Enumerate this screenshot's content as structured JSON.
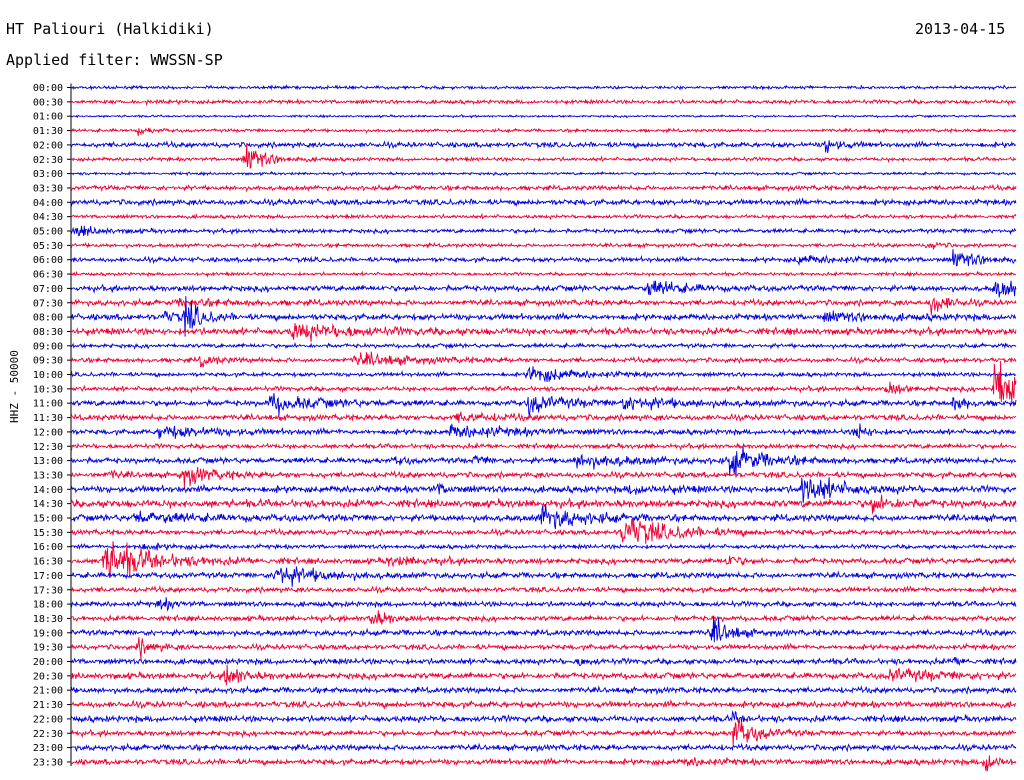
{
  "header": {
    "station": "HT Paliouri (Halkidiki)",
    "date": "2013-04-15",
    "filter": "Applied filter: WWSSN-SP",
    "channel": "HHZ - 50000"
  },
  "chart_data": {
    "type": "line",
    "title": "HT Paliouri (Halkidiki)",
    "subtitle": "Applied filter: WWSSN-SP",
    "date": "2013-04-15",
    "ylabel": "HHZ - 50000",
    "xlabel": "",
    "grid": false,
    "colors": {
      "even_trace": "#0000dd",
      "odd_trace": "#ee0033"
    },
    "row_labels": [
      "00:00",
      "00:30",
      "01:00",
      "01:30",
      "02:00",
      "02:30",
      "03:00",
      "03:30",
      "04:00",
      "04:30",
      "05:00",
      "05:30",
      "06:00",
      "06:30",
      "07:00",
      "07:30",
      "08:00",
      "08:30",
      "09:00",
      "09:30",
      "10:00",
      "10:30",
      "11:00",
      "11:30",
      "12:00",
      "12:30",
      "13:00",
      "13:30",
      "14:00",
      "14:30",
      "15:00",
      "15:30",
      "16:00",
      "16:30",
      "17:00",
      "17:30",
      "18:00",
      "18:30",
      "19:00",
      "19:30",
      "20:00",
      "20:30",
      "21:00",
      "21:30",
      "22:00",
      "22:30",
      "23:00",
      "23:30"
    ],
    "minutes_per_row": 30,
    "noise_level": [
      1.2,
      1.5,
      0.8,
      1.2,
      2.0,
      1.4,
      1.0,
      1.8,
      2.2,
      1.4,
      1.6,
      1.4,
      1.8,
      1.2,
      2.2,
      2.2,
      2.4,
      2.6,
      1.6,
      1.8,
      1.6,
      1.8,
      2.2,
      2.2,
      2.0,
      1.8,
      2.2,
      2.2,
      2.6,
      3.0,
      2.6,
      2.0,
      1.6,
      2.2,
      2.2,
      2.0,
      2.0,
      2.0,
      2.2,
      2.0,
      2.2,
      2.4,
      2.2,
      2.4,
      2.4,
      2.0,
      2.2,
      2.2
    ],
    "events": [
      {
        "row": 3,
        "minute": 2.1,
        "amplitude": 3,
        "duration": 0.8
      },
      {
        "row": 4,
        "minute": 23.9,
        "amplitude": 6,
        "duration": 0.8
      },
      {
        "row": 5,
        "minute": 5.5,
        "amplitude": 12,
        "duration": 1.2
      },
      {
        "row": 10,
        "minute": 0.0,
        "amplitude": 4,
        "duration": 1.5
      },
      {
        "row": 11,
        "minute": 27.2,
        "amplitude": 4,
        "duration": 0.6
      },
      {
        "row": 12,
        "minute": 23.0,
        "amplitude": 3,
        "duration": 2.5
      },
      {
        "row": 12,
        "minute": 28.0,
        "amplitude": 6,
        "duration": 2.0
      },
      {
        "row": 14,
        "minute": 18.3,
        "amplitude": 6,
        "duration": 2.0
      },
      {
        "row": 14,
        "minute": 29.3,
        "amplitude": 7,
        "duration": 2.0
      },
      {
        "row": 15,
        "minute": 3.4,
        "amplitude": 2,
        "duration": 3.0
      },
      {
        "row": 15,
        "minute": 27.3,
        "amplitude": 10,
        "duration": 0.8
      },
      {
        "row": 16,
        "minute": 2.9,
        "amplitude": 4,
        "duration": 1.0
      },
      {
        "row": 16,
        "minute": 3.6,
        "amplitude": 16,
        "duration": 0.8
      },
      {
        "row": 16,
        "minute": 23.9,
        "amplitude": 3,
        "duration": 3.0
      },
      {
        "row": 17,
        "minute": 7.0,
        "amplitude": 6,
        "duration": 3.5
      },
      {
        "row": 19,
        "minute": 4.1,
        "amplitude": 5,
        "duration": 0.8
      },
      {
        "row": 19,
        "minute": 9.0,
        "amplitude": 5,
        "duration": 3.0
      },
      {
        "row": 20,
        "minute": 14.5,
        "amplitude": 7,
        "duration": 2.5
      },
      {
        "row": 21,
        "minute": 29.3,
        "amplitude": 28,
        "duration": 1.5
      },
      {
        "row": 21,
        "minute": 25.9,
        "amplitude": 6,
        "duration": 0.8
      },
      {
        "row": 22,
        "minute": 6.3,
        "amplitude": 7,
        "duration": 2.5
      },
      {
        "row": 22,
        "minute": 14.5,
        "amplitude": 8,
        "duration": 1.8
      },
      {
        "row": 22,
        "minute": 17.5,
        "amplitude": 5,
        "duration": 3.0
      },
      {
        "row": 22,
        "minute": 28.0,
        "amplitude": 6,
        "duration": 0.8
      },
      {
        "row": 23,
        "minute": 12.2,
        "amplitude": 3,
        "duration": 2.5
      },
      {
        "row": 24,
        "minute": 2.8,
        "amplitude": 5,
        "duration": 3.0
      },
      {
        "row": 24,
        "minute": 12.0,
        "amplitude": 5,
        "duration": 3.5
      },
      {
        "row": 24,
        "minute": 24.9,
        "amplitude": 8,
        "duration": 0.6
      },
      {
        "row": 26,
        "minute": 10.3,
        "amplitude": 4,
        "duration": 0.5
      },
      {
        "row": 26,
        "minute": 12.8,
        "amplitude": 4,
        "duration": 0.5
      },
      {
        "row": 26,
        "minute": 16.0,
        "amplitude": 5,
        "duration": 3.0
      },
      {
        "row": 26,
        "minute": 20.9,
        "amplitude": 11,
        "duration": 2.0
      },
      {
        "row": 27,
        "minute": 1.2,
        "amplitude": 3,
        "duration": 0.6
      },
      {
        "row": 27,
        "minute": 3.5,
        "amplitude": 8,
        "duration": 1.5
      },
      {
        "row": 28,
        "minute": 11.6,
        "amplitude": 4,
        "duration": 0.8
      },
      {
        "row": 28,
        "minute": 17.7,
        "amplitude": 3,
        "duration": 2.0
      },
      {
        "row": 28,
        "minute": 23.2,
        "amplitude": 13,
        "duration": 1.8
      },
      {
        "row": 29,
        "minute": 25.4,
        "amplitude": 7,
        "duration": 1.0
      },
      {
        "row": 30,
        "minute": 2.0,
        "amplitude": 4,
        "duration": 3.0
      },
      {
        "row": 30,
        "minute": 14.9,
        "amplitude": 10,
        "duration": 2.0
      },
      {
        "row": 31,
        "minute": 17.5,
        "amplitude": 13,
        "duration": 2.5
      },
      {
        "row": 32,
        "minute": 2.0,
        "amplitude": 2,
        "duration": 2.0
      },
      {
        "row": 33,
        "minute": 1.0,
        "amplitude": 18,
        "duration": 2.5
      },
      {
        "row": 33,
        "minute": 10.0,
        "amplitude": 3,
        "duration": 2.5
      },
      {
        "row": 33,
        "minute": 20.8,
        "amplitude": 6,
        "duration": 0.6
      },
      {
        "row": 34,
        "minute": 6.5,
        "amplitude": 10,
        "duration": 2.0
      },
      {
        "row": 36,
        "minute": 2.8,
        "amplitude": 6,
        "duration": 0.6
      },
      {
        "row": 37,
        "minute": 9.5,
        "amplitude": 9,
        "duration": 0.8
      },
      {
        "row": 38,
        "minute": 20.3,
        "amplitude": 12,
        "duration": 1.0
      },
      {
        "row": 39,
        "minute": 2.1,
        "amplitude": 8,
        "duration": 0.8
      },
      {
        "row": 40,
        "minute": 16.1,
        "amplitude": 3,
        "duration": 0.6
      },
      {
        "row": 40,
        "minute": 28.0,
        "amplitude": 3,
        "duration": 0.6
      },
      {
        "row": 41,
        "minute": 4.9,
        "amplitude": 12,
        "duration": 0.8
      },
      {
        "row": 41,
        "minute": 26.0,
        "amplitude": 5,
        "duration": 2.5
      },
      {
        "row": 44,
        "minute": 21.0,
        "amplitude": 4,
        "duration": 0.6
      },
      {
        "row": 45,
        "minute": 21.0,
        "amplitude": 14,
        "duration": 1.2
      },
      {
        "row": 47,
        "minute": 19.5,
        "amplitude": 3,
        "duration": 1.5
      },
      {
        "row": 47,
        "minute": 29.0,
        "amplitude": 12,
        "duration": 0.6
      }
    ]
  }
}
